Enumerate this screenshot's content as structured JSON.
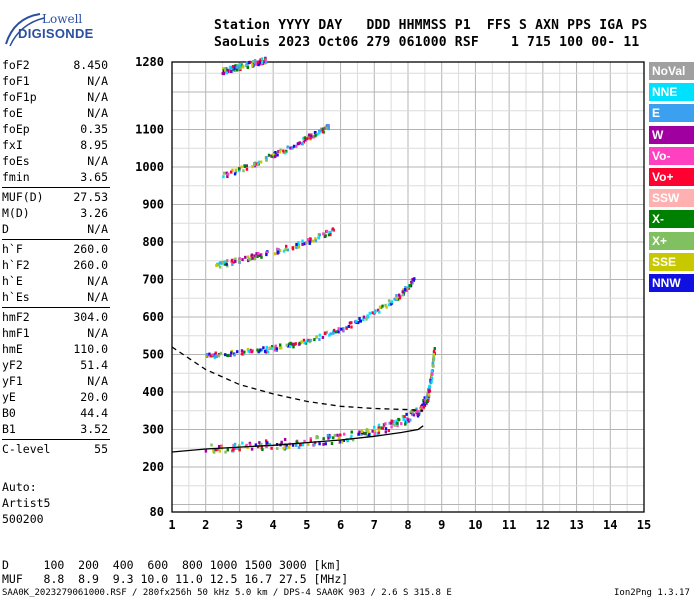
{
  "logo": {
    "line1": "Lowell",
    "line2": "DIGISONDE"
  },
  "header": {
    "line1": "Station YYYY DAY   DDD HHMMSS P1  FFS S AXN PPS IGA PS",
    "line2": "SaoLuis 2023 Oct06 279 061000 RSF    1 715 100 00- 11"
  },
  "params": [
    {
      "k": "foF2",
      "v": "8.450"
    },
    {
      "k": "foF1",
      "v": "N/A"
    },
    {
      "k": "foF1p",
      "v": "N/A"
    },
    {
      "k": "foE",
      "v": "N/A"
    },
    {
      "k": "foEp",
      "v": "0.35"
    },
    {
      "k": "fxI",
      "v": "8.95"
    },
    {
      "k": "foEs",
      "v": "N/A"
    },
    {
      "k": "fmin",
      "v": "3.65"
    },
    {
      "k": "MUF(D)",
      "v": "27.53"
    },
    {
      "k": "M(D)",
      "v": "3.26"
    },
    {
      "k": "D",
      "v": "N/A"
    },
    {
      "k": "h`F",
      "v": "260.0"
    },
    {
      "k": "h`F2",
      "v": "260.0"
    },
    {
      "k": "h`E",
      "v": "N/A"
    },
    {
      "k": "h`Es",
      "v": "N/A"
    },
    {
      "k": "hmF2",
      "v": "304.0"
    },
    {
      "k": "hmF1",
      "v": "N/A"
    },
    {
      "k": "hmE",
      "v": "110.0"
    },
    {
      "k": "yF2",
      "v": "51.4"
    },
    {
      "k": "yF1",
      "v": "N/A"
    },
    {
      "k": "yE",
      "v": "20.0"
    },
    {
      "k": "B0",
      "v": "44.4"
    },
    {
      "k": "B1",
      "v": "3.52"
    },
    {
      "k": "C-level",
      "v": "55"
    }
  ],
  "notes": {
    "auto": "Auto:",
    "artist": "Artist5",
    "version": "500200"
  },
  "legend": [
    {
      "label": "NoVal",
      "color": "#a0a0a0"
    },
    {
      "label": "NNE",
      "color": "#00e0ff"
    },
    {
      "label": "E",
      "color": "#3ca0f0"
    },
    {
      "label": "W",
      "color": "#a000a0"
    },
    {
      "label": "Vo-",
      "color": "#ff40c0"
    },
    {
      "label": "Vo+",
      "color": "#ff0030"
    },
    {
      "label": "SSW",
      "color": "#ffb0b0"
    },
    {
      "label": "X-",
      "color": "#008000"
    },
    {
      "label": "X+",
      "color": "#80c060"
    },
    {
      "label": "SSE",
      "color": "#c8c800"
    },
    {
      "label": "NNW",
      "color": "#1010e0"
    }
  ],
  "footer": {
    "d_line": "D     100  200  400  600  800 1000 1500 3000 [km]",
    "muf_line": "MUF   8.8  8.9  9.3 10.0 11.0 12.5 16.7 27.5 [MHz]",
    "file_line": "SAA0K_2023279061000.RSF / 280fx256h 50 kHz 5.0 km / DPS-4 SAA0K 903 / 2.6 S 315.8 E",
    "version_line": "Ion2Png 1.3.17"
  },
  "chart_data": {
    "type": "scatter",
    "title": "",
    "xlabel": "",
    "ylabel": "",
    "xlim": [
      1,
      15
    ],
    "ylim": [
      80,
      1280
    ],
    "x_ticks": [
      1,
      2,
      3,
      4,
      5,
      6,
      7,
      8,
      9,
      10,
      11,
      12,
      13,
      14,
      15
    ],
    "y_ticks": [
      80,
      200,
      300,
      400,
      500,
      600,
      700,
      800,
      900,
      1000,
      1100,
      1280
    ],
    "grid": true,
    "traces": [
      {
        "name": "o1",
        "points": [
          [
            2.0,
            248
          ],
          [
            3,
            252
          ],
          [
            4,
            258
          ],
          [
            5,
            266
          ],
          [
            6,
            278
          ],
          [
            6.8,
            292
          ],
          [
            7.5,
            310
          ],
          [
            8,
            330
          ],
          [
            8.4,
            355
          ],
          [
            8.6,
            390
          ],
          [
            8.7,
            440
          ],
          [
            8.8,
            520
          ]
        ]
      },
      {
        "name": "o2",
        "points": [
          [
            2.0,
            496
          ],
          [
            3,
            504
          ],
          [
            4,
            515
          ],
          [
            5,
            535
          ],
          [
            6,
            565
          ],
          [
            7,
            610
          ],
          [
            7.8,
            660
          ],
          [
            8.2,
            700
          ]
        ]
      },
      {
        "name": "o3",
        "points": [
          [
            2.3,
            735
          ],
          [
            3,
            752
          ],
          [
            4,
            772
          ],
          [
            5,
            800
          ],
          [
            5.8,
            830
          ]
        ]
      },
      {
        "name": "o4",
        "points": [
          [
            2.5,
            975
          ],
          [
            3.5,
            1010
          ],
          [
            4.5,
            1050
          ],
          [
            5.2,
            1085
          ],
          [
            5.7,
            1110
          ]
        ]
      },
      {
        "name": "o5",
        "points": [
          [
            2.5,
            1255
          ],
          [
            3.2,
            1270
          ],
          [
            3.8,
            1285
          ]
        ]
      }
    ],
    "profile_solid": [
      [
        1,
        240
      ],
      [
        2,
        248
      ],
      [
        3,
        253
      ],
      [
        4,
        258
      ],
      [
        5,
        265
      ],
      [
        6,
        272
      ],
      [
        7,
        282
      ],
      [
        7.8,
        292
      ],
      [
        8.3,
        300
      ],
      [
        8.45,
        310
      ]
    ],
    "profile_dashed": [
      [
        1,
        520
      ],
      [
        1.5,
        490
      ],
      [
        2,
        460
      ],
      [
        3,
        420
      ],
      [
        4,
        395
      ],
      [
        5,
        375
      ],
      [
        6,
        362
      ],
      [
        7,
        356
      ],
      [
        8,
        353
      ],
      [
        8.45,
        350
      ]
    ]
  }
}
